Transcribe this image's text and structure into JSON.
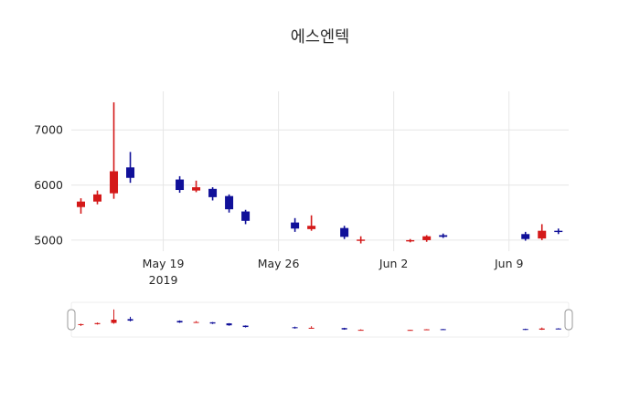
{
  "chart_data": {
    "type": "candlestick",
    "title": "에스엔텍",
    "x_range": [
      "2019-05-13T10:00:00Z",
      "2019-06-12T15:00:00Z"
    ],
    "ylim": [
      4800,
      7700
    ],
    "increasing_color": "#d41919",
    "decreasing_color": "#101099",
    "grid_color": "#e6e6e6",
    "text_color": "#262626",
    "title_color": "#2a2a2a",
    "legend": "none",
    "rangeslider": true,
    "y_ticks": [
      {
        "value": 5000,
        "label": "5000"
      },
      {
        "value": 6000,
        "label": "6000"
      },
      {
        "value": 7000,
        "label": "7000"
      }
    ],
    "x_ticks": [
      {
        "date": "2019-05-19",
        "label": "May 19",
        "sublabel": "2019"
      },
      {
        "date": "2019-05-26",
        "label": "May 26"
      },
      {
        "date": "2019-06-02",
        "label": "Jun 2"
      },
      {
        "date": "2019-06-09",
        "label": "Jun 9"
      }
    ],
    "candles": [
      {
        "date": "2019-05-14",
        "open": 5600,
        "high": 5760,
        "low": 5480,
        "close": 5700
      },
      {
        "date": "2019-05-15",
        "open": 5700,
        "high": 5900,
        "low": 5650,
        "close": 5830
      },
      {
        "date": "2019-05-16",
        "open": 5850,
        "high": 7500,
        "low": 5750,
        "close": 6250
      },
      {
        "date": "2019-05-17",
        "open": 6320,
        "high": 6600,
        "low": 6040,
        "close": 6130
      },
      {
        "date": "2019-05-20",
        "open": 6100,
        "high": 6160,
        "low": 5860,
        "close": 5910
      },
      {
        "date": "2019-05-21",
        "open": 5900,
        "high": 6080,
        "low": 5870,
        "close": 5960
      },
      {
        "date": "2019-05-22",
        "open": 5930,
        "high": 5960,
        "low": 5720,
        "close": 5780
      },
      {
        "date": "2019-05-23",
        "open": 5800,
        "high": 5830,
        "low": 5500,
        "close": 5560
      },
      {
        "date": "2019-05-24",
        "open": 5520,
        "high": 5550,
        "low": 5290,
        "close": 5350
      },
      {
        "date": "2019-05-27",
        "open": 5320,
        "high": 5400,
        "low": 5150,
        "close": 5210
      },
      {
        "date": "2019-05-28",
        "open": 5200,
        "high": 5450,
        "low": 5170,
        "close": 5260
      },
      {
        "date": "2019-05-30",
        "open": 5220,
        "high": 5260,
        "low": 5020,
        "close": 5060
      },
      {
        "date": "2019-05-31",
        "open": 4990,
        "high": 5070,
        "low": 4940,
        "close": 5010
      },
      {
        "date": "2019-06-03",
        "open": 4990,
        "high": 5020,
        "low": 4960,
        "close": 5000
      },
      {
        "date": "2019-06-04",
        "open": 5000,
        "high": 5090,
        "low": 4970,
        "close": 5070
      },
      {
        "date": "2019-06-05",
        "open": 5090,
        "high": 5120,
        "low": 5040,
        "close": 5060
      },
      {
        "date": "2019-06-10",
        "open": 5110,
        "high": 5150,
        "low": 4990,
        "close": 5020
      },
      {
        "date": "2019-06-11",
        "open": 5030,
        "high": 5290,
        "low": 5000,
        "close": 5170
      },
      {
        "date": "2019-06-12",
        "open": 5170,
        "high": 5210,
        "low": 5110,
        "close": 5150
      }
    ]
  }
}
